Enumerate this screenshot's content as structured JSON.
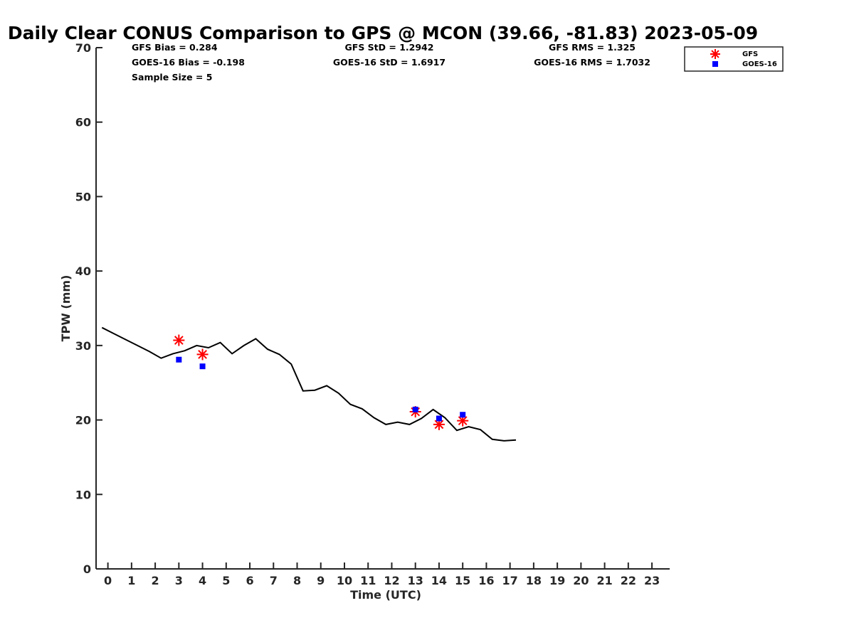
{
  "chart_data": {
    "type": "line",
    "title": "Daily Clear CONUS Comparison to GPS @ MCON (39.66, -81.83) 2023-05-09",
    "xlabel": "Time (UTC)",
    "ylabel": "TPW (mm)",
    "xlim": [
      -0.5,
      23.75
    ],
    "ylim": [
      0,
      70
    ],
    "x_ticks": [
      0,
      1,
      2,
      3,
      4,
      5,
      6,
      7,
      8,
      9,
      10,
      11,
      12,
      13,
      14,
      15,
      16,
      17,
      18,
      19,
      20,
      21,
      22,
      23
    ],
    "y_ticks": [
      0,
      10,
      20,
      30,
      40,
      50,
      60,
      70
    ],
    "grid": false,
    "legend_position": "top-right",
    "stats": [
      {
        "text": "GFS Bias = 0.284",
        "col": 0,
        "row": 0
      },
      {
        "text": "GOES-16 Bias = -0.198",
        "col": 0,
        "row": 1
      },
      {
        "text": "Sample Size = 5",
        "col": 0,
        "row": 2
      },
      {
        "text": "GFS StD = 1.2942",
        "col": 1,
        "row": 0
      },
      {
        "text": "GOES-16 StD = 1.6917",
        "col": 1,
        "row": 1
      },
      {
        "text": "GFS RMS = 1.325",
        "col": 2,
        "row": 0
      },
      {
        "text": "GOES-16 RMS = 1.7032",
        "col": 2,
        "row": 1
      }
    ],
    "gps_line": {
      "color": "#000000",
      "x": [
        -0.25,
        0.25,
        0.75,
        1.25,
        1.75,
        2.25,
        2.75,
        3.25,
        3.75,
        4.25,
        4.75,
        5.25,
        5.75,
        6.25,
        6.75,
        7.25,
        7.75,
        8.25,
        8.75,
        9.25,
        9.75,
        10.25,
        10.75,
        11.25,
        11.75,
        12.25,
        12.75,
        13.25,
        13.75,
        14.25,
        14.75,
        15.25,
        15.75,
        16.25,
        16.75,
        17.25
      ],
      "y": [
        32.4,
        31.6,
        30.8,
        30.0,
        29.2,
        28.3,
        28.9,
        29.3,
        30.0,
        29.7,
        30.4,
        28.9,
        30.0,
        30.9,
        29.5,
        28.8,
        27.5,
        23.9,
        24.0,
        24.6,
        23.6,
        22.1,
        21.5,
        20.3,
        19.4,
        19.7,
        19.4,
        20.2,
        21.4,
        20.3,
        18.6,
        19.1,
        18.7,
        17.4,
        17.2,
        17.3
      ]
    },
    "series": [
      {
        "name": "GFS",
        "marker": "asterisk",
        "color": "#ff0000",
        "x": [
          3,
          4,
          13,
          14,
          15
        ],
        "y": [
          30.7,
          28.8,
          21.1,
          19.4,
          19.9
        ]
      },
      {
        "name": "GOES-16",
        "marker": "square",
        "color": "#0000ff",
        "x": [
          3,
          4,
          13,
          14,
          15
        ],
        "y": [
          28.1,
          27.2,
          21.4,
          20.2,
          20.7
        ]
      }
    ]
  }
}
